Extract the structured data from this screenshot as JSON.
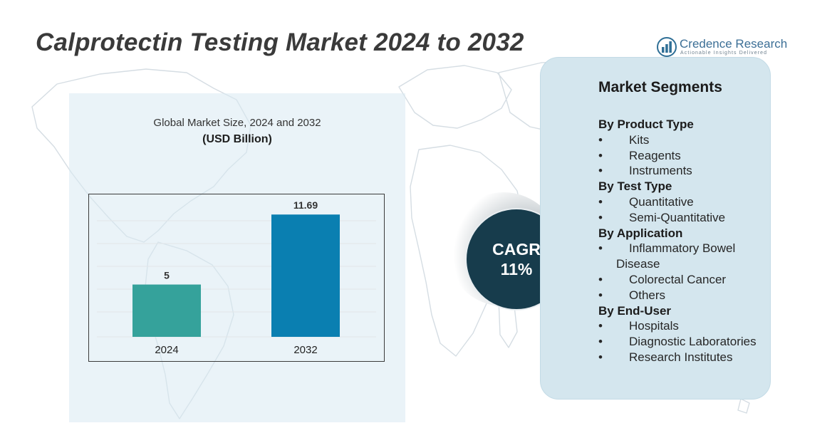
{
  "title": "Calprotectin Testing Market 2024 to 2032",
  "logo": {
    "name": "Credence Research",
    "tagline": "Actionable Insights Delivered",
    "icon": "bar-chart-logo-icon"
  },
  "chart_data": {
    "type": "bar",
    "title": "Global Market Size, 2024 and 2032",
    "unit_label": "(USD Billion)",
    "categories": [
      "2024",
      "2032"
    ],
    "values": [
      5,
      11.69
    ],
    "data_labels": [
      "5",
      "11.69"
    ],
    "colors": [
      "#35a29b",
      "#0a7fb1"
    ],
    "ylim": [
      0,
      13
    ],
    "grid": true,
    "legend": "none"
  },
  "cagr": {
    "label": "CAGR",
    "value": "11%"
  },
  "segments": {
    "heading": "Market Segments",
    "bullet": "•",
    "groups": [
      {
        "label": "By Product Type",
        "items": [
          "Kits",
          "Reagents",
          "Instruments"
        ]
      },
      {
        "label": "By Test Type",
        "items": [
          "Quantitative",
          "Semi-Quantitative"
        ]
      },
      {
        "label": "By Application",
        "items": [
          "Inflammatory Bowel Disease",
          "Colorectal Cancer",
          "Others"
        ]
      },
      {
        "label": "By End-User",
        "items": [
          "Hospitals",
          "Diagnostic Laboratories",
          "Research Institutes"
        ]
      }
    ]
  },
  "colors": {
    "accent_dark": "#173c4c",
    "panel_light": "#d4e6ee",
    "title_gray": "#3a3a3a"
  }
}
